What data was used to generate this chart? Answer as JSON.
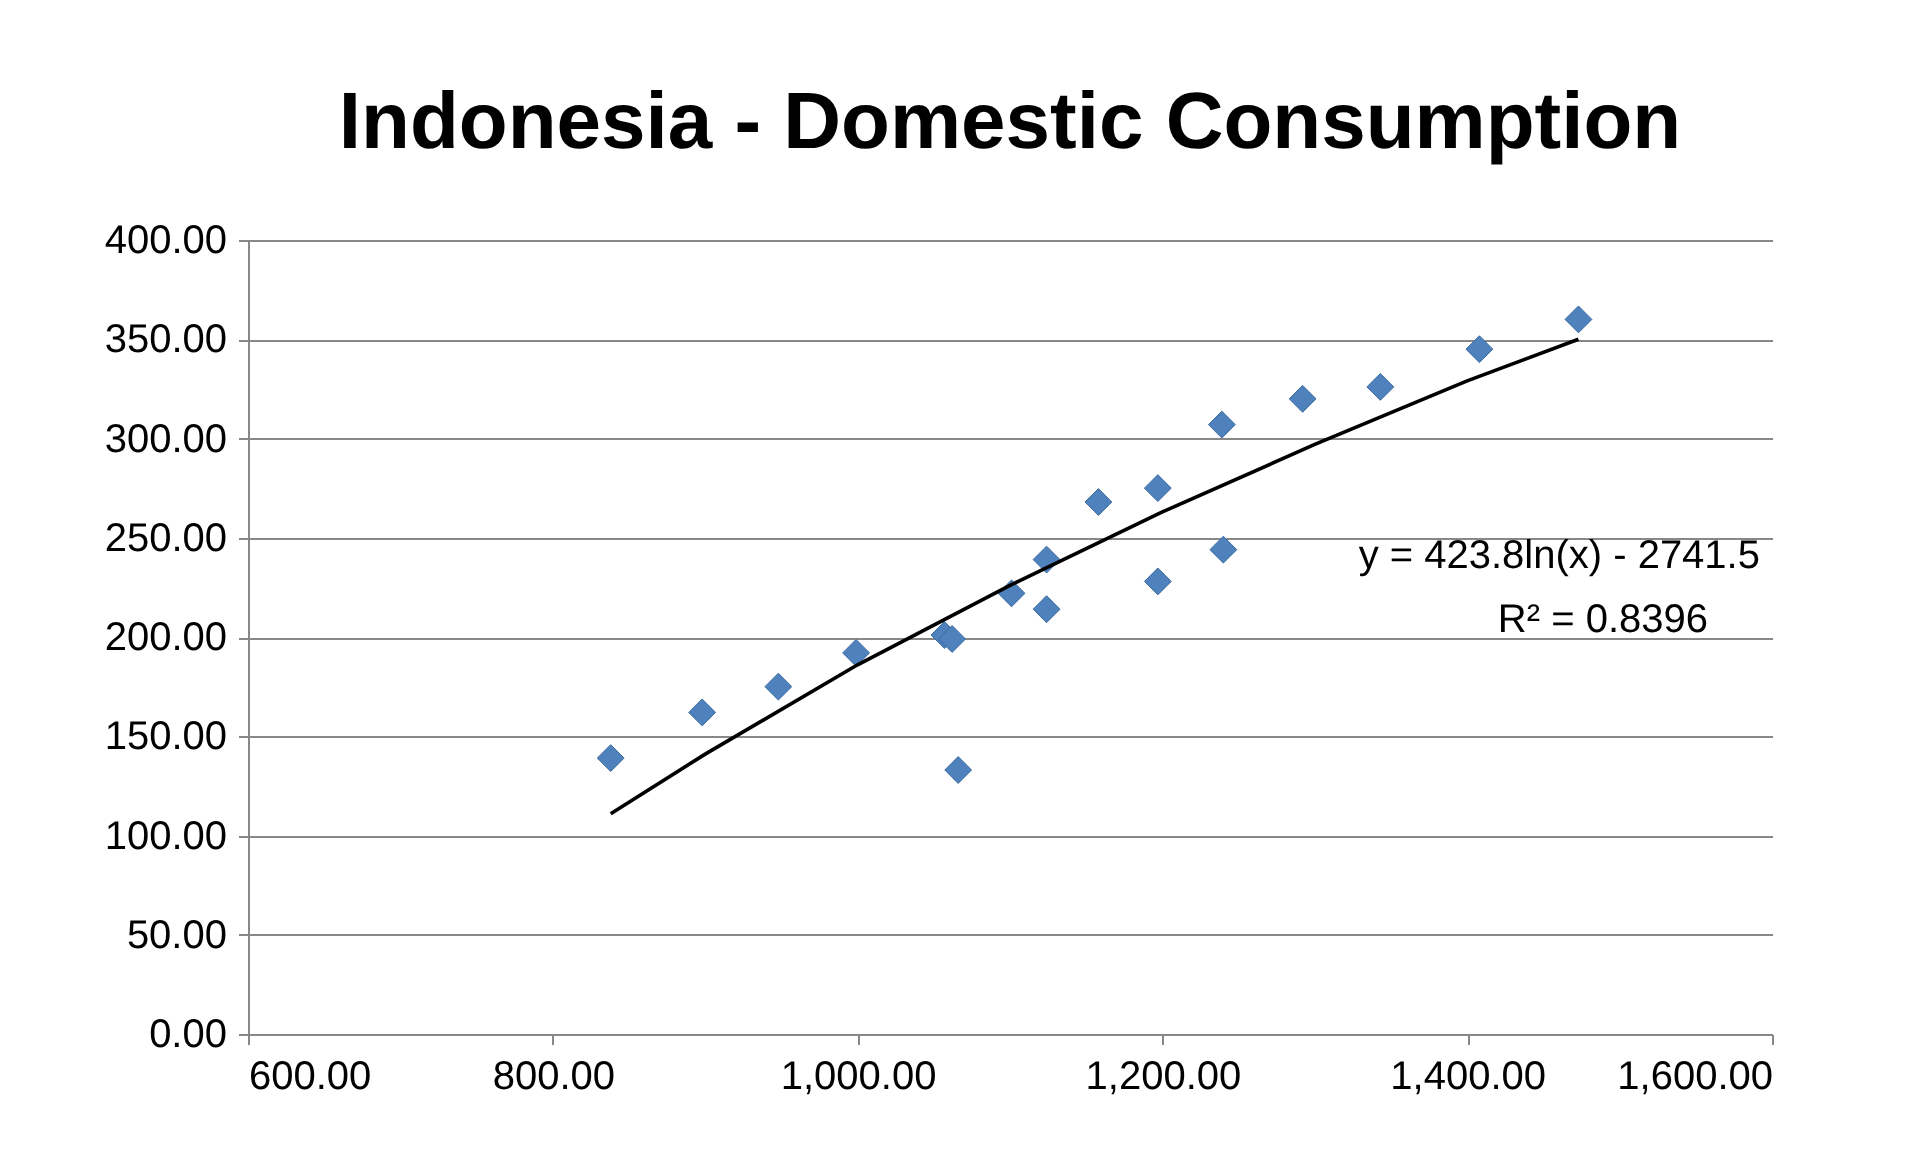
{
  "chart_data": {
    "type": "scatter",
    "title": "Indonesia - Domestic Consumption",
    "xlim": [
      600,
      1600
    ],
    "ylim": [
      0,
      400
    ],
    "xticks": [
      {
        "value": 600,
        "label": "600.00"
      },
      {
        "value": 800,
        "label": "800.00"
      },
      {
        "value": 1000,
        "label": "1,000.00"
      },
      {
        "value": 1200,
        "label": "1,200.00"
      },
      {
        "value": 1400,
        "label": "1,400.00"
      },
      {
        "value": 1600,
        "label": "1,600.00"
      }
    ],
    "yticks": [
      {
        "value": 0,
        "label": "0.00"
      },
      {
        "value": 50,
        "label": "50.00"
      },
      {
        "value": 100,
        "label": "100.00"
      },
      {
        "value": 150,
        "label": "150.00"
      },
      {
        "value": 200,
        "label": "200.00"
      },
      {
        "value": 250,
        "label": "250.00"
      },
      {
        "value": 300,
        "label": "300.00"
      },
      {
        "value": 350,
        "label": "350.00"
      },
      {
        "value": 400,
        "label": "400.00"
      }
    ],
    "grid": "y",
    "series": [
      {
        "marker": "diamond",
        "color": "#4f81bd",
        "x": [
          838,
          898,
          948,
          999,
          1057,
          1062,
          1066,
          1101,
          1124,
          1124,
          1158,
          1197,
          1197,
          1239,
          1240,
          1292,
          1343,
          1408,
          1473
        ],
        "values": [
          139,
          162,
          175,
          192,
          201,
          199,
          133,
          222,
          239,
          214,
          268,
          275,
          228,
          307,
          244,
          320,
          326,
          345,
          360
        ]
      },
      {
        "type": "line",
        "marker": "none",
        "line_style": "solid",
        "color": "#000000",
        "x": [
          838,
          900,
          1000,
          1100,
          1200,
          1300,
          1400,
          1473
        ],
        "values": [
          111,
          141,
          186,
          226,
          263,
          297,
          329,
          350
        ]
      }
    ],
    "annotations": [
      "y = 423.8ln(x) - 2741.5",
      "R² = 0.8396"
    ]
  }
}
